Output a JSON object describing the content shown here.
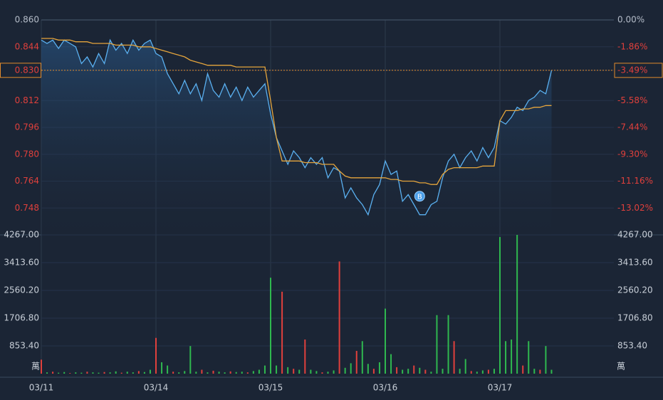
{
  "chart_data": [
    {
      "type": "line",
      "ylim": [
        0.732,
        0.86
      ],
      "yticks": [
        {
          "value": 0.86,
          "label": "0.860"
        },
        0.844,
        {
          "value": 0.83,
          "label": "0.830"
        },
        0.812,
        0.796,
        {
          "value": 0.78,
          "label": "0.780"
        },
        0.764,
        0.748
      ],
      "y2lim": [
        -14.88,
        0
      ],
      "y2ticks": [
        {
          "value": 0,
          "label": "0.00%"
        },
        {
          "value": -1.86,
          "label": "-1.86%"
        },
        {
          "value": -3.49,
          "label": "-3.49%"
        },
        {
          "value": -5.58,
          "label": "-5.58%"
        },
        {
          "value": -7.44,
          "label": "-7.44%"
        },
        {
          "value": -9.3,
          "label": "-9.30%"
        },
        {
          "value": -11.16,
          "label": "-11.16%"
        },
        {
          "value": -13.02,
          "label": "-13.02%"
        }
      ],
      "grid": true,
      "up_color": "#b4bcc8",
      "down_color": "#e0403c",
      "highlight_color": "#e08a2c",
      "series": [
        {
          "color": "#5ab0f0",
          "values": [
            0.848,
            0.846,
            0.848,
            0.843,
            0.848,
            0.846,
            0.844,
            0.834,
            0.838,
            0.832,
            0.84,
            0.834,
            0.848,
            0.842,
            0.846,
            0.84,
            0.848,
            0.842,
            0.846,
            0.848,
            0.84,
            0.838,
            0.828,
            0.822,
            0.816,
            0.824,
            0.816,
            0.822,
            0.812,
            0.828,
            0.818,
            0.814,
            0.822,
            0.814,
            0.82,
            0.812,
            0.82,
            0.814,
            0.818,
            0.822,
            0.804,
            0.79,
            0.782,
            0.774,
            0.782,
            0.778,
            0.772,
            0.778,
            0.774,
            0.778,
            0.766,
            0.772,
            0.77,
            0.754,
            0.76,
            0.754,
            0.75,
            0.744,
            0.756,
            0.762,
            0.776,
            0.768,
            0.77,
            0.752,
            0.756,
            0.75,
            0.744,
            0.744,
            0.75,
            0.752,
            0.766,
            0.776,
            0.78,
            0.772,
            0.778,
            0.782,
            0.776,
            0.784,
            0.778,
            0.784,
            0.8,
            0.798,
            0.802,
            0.808,
            0.806,
            0.812,
            0.814,
            0.818,
            0.816,
            0.83
          ]
        },
        {
          "color": "#e5a53c",
          "values": [
            0.849,
            0.849,
            0.849,
            0.848,
            0.848,
            0.848,
            0.847,
            0.847,
            0.847,
            0.846,
            0.846,
            0.846,
            0.846,
            0.845,
            0.845,
            0.845,
            0.845,
            0.844,
            0.844,
            0.844,
            0.843,
            0.842,
            0.841,
            0.84,
            0.839,
            0.838,
            0.836,
            0.835,
            0.834,
            0.833,
            0.833,
            0.833,
            0.833,
            0.833,
            0.832,
            0.832,
            0.832,
            0.832,
            0.832,
            0.832,
            0.812,
            0.79,
            0.776,
            0.776,
            0.776,
            0.776,
            0.775,
            0.775,
            0.775,
            0.774,
            0.774,
            0.774,
            0.77,
            0.767,
            0.766,
            0.766,
            0.766,
            0.766,
            0.766,
            0.766,
            0.766,
            0.765,
            0.765,
            0.764,
            0.764,
            0.764,
            0.763,
            0.763,
            0.762,
            0.762,
            0.768,
            0.771,
            0.772,
            0.772,
            0.772,
            0.772,
            0.772,
            0.773,
            0.773,
            0.773,
            0.8,
            0.806,
            0.806,
            0.806,
            0.807,
            0.807,
            0.808,
            0.808,
            0.809,
            0.809
          ]
        }
      ],
      "annotations": [
        {
          "text": "B",
          "index": 66,
          "value": 0.755
        }
      ]
    },
    {
      "type": "bar",
      "categories": [
        "03/11",
        null,
        null,
        null,
        null,
        null,
        null,
        null,
        null,
        null,
        null,
        null,
        null,
        null,
        null,
        null,
        null,
        null,
        null,
        null,
        "03/14",
        null,
        null,
        null,
        null,
        null,
        null,
        null,
        null,
        null,
        null,
        null,
        null,
        null,
        null,
        null,
        null,
        null,
        null,
        null,
        "03/15",
        null,
        null,
        null,
        null,
        null,
        null,
        null,
        null,
        null,
        null,
        null,
        null,
        null,
        null,
        null,
        null,
        null,
        null,
        null,
        "03/16",
        null,
        null,
        null,
        null,
        null,
        null,
        null,
        null,
        null,
        null,
        null,
        null,
        null,
        null,
        null,
        null,
        null,
        null,
        null,
        "03/17",
        null,
        null,
        null,
        null,
        null,
        null,
        null,
        null,
        null
      ],
      "values": [
        430,
        40,
        60,
        30,
        50,
        20,
        40,
        30,
        60,
        40,
        30,
        50,
        40,
        70,
        30,
        60,
        40,
        80,
        50,
        120,
        1100,
        350,
        250,
        60,
        40,
        80,
        850,
        60,
        120,
        40,
        90,
        60,
        40,
        70,
        50,
        60,
        40,
        80,
        120,
        250,
        2950,
        250,
        2520,
        200,
        150,
        120,
        1050,
        120,
        80,
        40,
        60,
        100,
        3450,
        180,
        320,
        700,
        1000,
        300,
        150,
        350,
        2000,
        600,
        200,
        120,
        150,
        250,
        180,
        120,
        60,
        1800,
        150,
        1800,
        1000,
        150,
        450,
        80,
        60,
        100,
        120,
        150,
        4200,
        1000,
        1050,
        4267,
        250,
        1000,
        150,
        120,
        850,
        120
      ],
      "colors": [
        "#e0403c",
        "#2fb84f",
        "#e0403c",
        "#2fb84f",
        "#2fb84f",
        "#e0403c",
        "#2fb84f",
        "#2fb84f",
        "#e0403c",
        "#2fb84f",
        "#2fb84f",
        "#e0403c",
        "#2fb84f",
        "#2fb84f",
        "#e0403c",
        "#2fb84f",
        "#2fb84f",
        "#e0403c",
        "#2fb84f",
        "#2fb84f",
        "#e0403c",
        "#2fb84f",
        "#2fb84f",
        "#e0403c",
        "#2fb84f",
        "#2fb84f",
        "#2fb84f",
        "#2fb84f",
        "#e0403c",
        "#2fb84f",
        "#e0403c",
        "#2fb84f",
        "#2fb84f",
        "#e0403c",
        "#2fb84f",
        "#2fb84f",
        "#e0403c",
        "#2fb84f",
        "#2fb84f",
        "#2fb84f",
        "#2fb84f",
        "#2fb84f",
        "#e0403c",
        "#2fb84f",
        "#e0403c",
        "#2fb84f",
        "#e0403c",
        "#2fb84f",
        "#2fb84f",
        "#e0403c",
        "#2fb84f",
        "#2fb84f",
        "#e0403c",
        "#2fb84f",
        "#2fb84f",
        "#e0403c",
        "#2fb84f",
        "#2fb84f",
        "#e0403c",
        "#2fb84f",
        "#2fb84f",
        "#2fb84f",
        "#e0403c",
        "#2fb84f",
        "#2fb84f",
        "#e0403c",
        "#2fb84f",
        "#e0403c",
        "#2fb84f",
        "#2fb84f",
        "#2fb84f",
        "#2fb84f",
        "#e0403c",
        "#2fb84f",
        "#2fb84f",
        "#e0403c",
        "#2fb84f",
        "#2fb84f",
        "#e0403c",
        "#2fb84f",
        "#2fb84f",
        "#2fb84f",
        "#2fb84f",
        "#2fb84f",
        "#e0403c",
        "#2fb84f",
        "#2fb84f",
        "#e0403c",
        "#2fb84f",
        "#2fb84f"
      ],
      "ylim": [
        0,
        4267
      ],
      "yticks": [
        {
          "value": 4267,
          "label": "4267.00"
        },
        {
          "value": 3413.6,
          "label": "3413.60"
        },
        {
          "value": 2560.2,
          "label": "2560.20"
        },
        {
          "value": 1706.8,
          "label": "1706.80"
        },
        {
          "value": 853.4,
          "label": "853.40"
        }
      ],
      "unit": "萬"
    }
  ]
}
